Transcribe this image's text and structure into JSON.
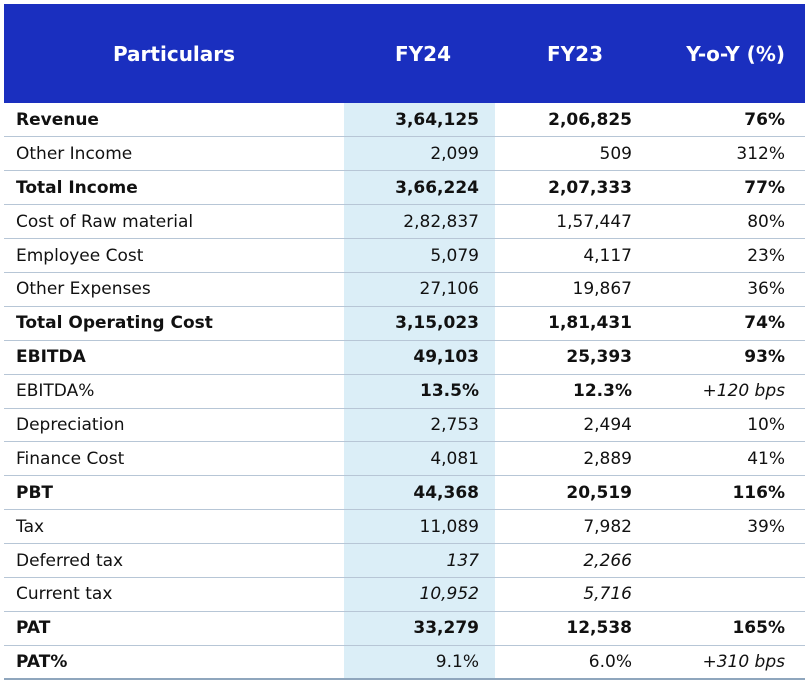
{
  "header": {
    "particulars": "Particulars",
    "fy24": "FY24",
    "fy23": "FY23",
    "yoy": "Y-o-Y (%)"
  },
  "rows": [
    {
      "label": "Revenue",
      "fy24": "3,64,125",
      "fy23": "2,06,825",
      "yoy": "76%"
    },
    {
      "label": "Other Income",
      "fy24": "2,099",
      "fy23": "509",
      "yoy": "312%"
    },
    {
      "label": "Total Income",
      "fy24": "3,66,224",
      "fy23": "2,07,333",
      "yoy": "77%"
    },
    {
      "label": "Cost of Raw material",
      "fy24": "2,82,837",
      "fy23": "1,57,447",
      "yoy": "80%"
    },
    {
      "label": "Employee Cost",
      "fy24": "5,079",
      "fy23": "4,117",
      "yoy": "23%"
    },
    {
      "label": "Other Expenses",
      "fy24": "27,106",
      "fy23": "19,867",
      "yoy": "36%"
    },
    {
      "label": "Total Operating Cost",
      "fy24": "3,15,023",
      "fy23": "1,81,431",
      "yoy": "74%"
    },
    {
      "label": "EBITDA",
      "fy24": "49,103",
      "fy23": "25,393",
      "yoy": "93%"
    },
    {
      "label": "EBITDA%",
      "fy24": "13.5%",
      "fy23": "12.3%",
      "yoy": "+120 bps"
    },
    {
      "label": "Depreciation",
      "fy24": "2,753",
      "fy23": "2,494",
      "yoy": "10%"
    },
    {
      "label": "Finance Cost",
      "fy24": "4,081",
      "fy23": "2,889",
      "yoy": "41%"
    },
    {
      "label": "PBT",
      "fy24": "44,368",
      "fy23": "20,519",
      "yoy": "116%"
    },
    {
      "label": "Tax",
      "fy24": "11,089",
      "fy23": "7,982",
      "yoy": "39%"
    },
    {
      "label": "Deferred tax",
      "fy24": "137",
      "fy23": "2,266",
      "yoy": ""
    },
    {
      "label": "Current tax",
      "fy24": "10,952",
      "fy23": "5,716",
      "yoy": ""
    },
    {
      "label": "PAT",
      "fy24": "33,279",
      "fy23": "12,538",
      "yoy": "165%"
    },
    {
      "label": "PAT%",
      "fy24": "9.1%",
      "fy23": "6.0%",
      "yoy": "+310 bps"
    }
  ],
  "colors": {
    "header_bg": "#1a2fbf",
    "highlight_column": "#dbeef7",
    "row_divider": "#b7c6d6"
  }
}
